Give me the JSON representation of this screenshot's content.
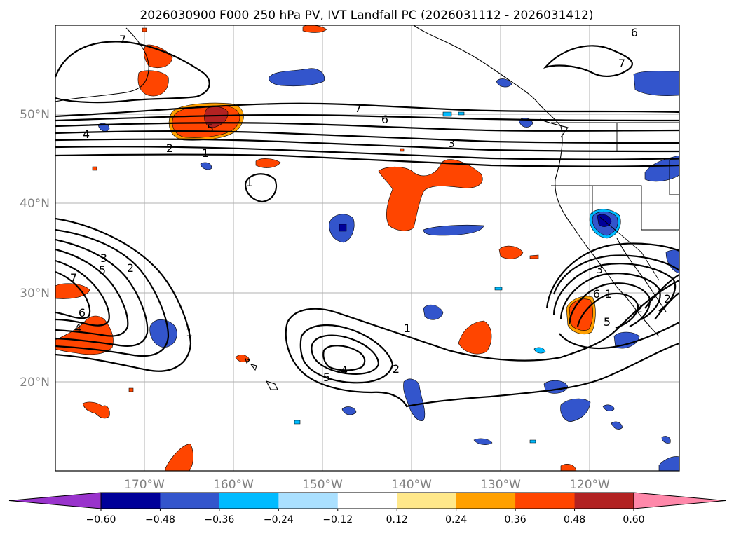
{
  "title": "2026030900 F000 250 hPa PV, IVT Landfall PC (2026031112 - 2026031412)",
  "axes": {
    "lon_labels": [
      "170°W",
      "160°W",
      "150°W",
      "140°W",
      "130°W",
      "120°W"
    ],
    "lat_labels": [
      "50°N",
      "40°N",
      "30°N",
      "20°N"
    ]
  },
  "colorbar": {
    "ticks": [
      "−0.60",
      "−0.48",
      "−0.36",
      "−0.24",
      "−0.12",
      "0.12",
      "0.24",
      "0.36",
      "0.48",
      "0.60"
    ],
    "colors": [
      "#9933cc",
      "#000099",
      "#3355cc",
      "#00bbff",
      "#aae0ff",
      "#ffffff",
      "#ffe88a",
      "#ffa000",
      "#ff4500",
      "#b22222",
      "#ff88aa"
    ],
    "under_color": "#9933cc",
    "over_color": "#ff88aa"
  },
  "contour_labels": [
    "7",
    "6",
    "4",
    "5",
    "2",
    "1",
    "3",
    "7",
    "6",
    "3",
    "1",
    "3",
    "5",
    "2",
    "7",
    "6",
    "4",
    "1",
    "4",
    "5",
    "2",
    "3",
    "6",
    "1",
    "5",
    "2",
    "2",
    "6",
    "7",
    "1"
  ]
}
